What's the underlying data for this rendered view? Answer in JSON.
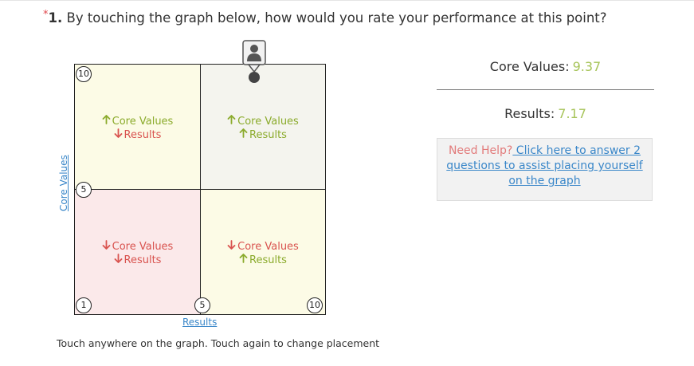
{
  "question": {
    "required_mark": "*",
    "number": "1.",
    "text": "By touching the graph below, how would you rate your performance at this point?"
  },
  "graph": {
    "quadrants": {
      "top_left": {
        "line1": "Core Values",
        "line1_dir": "up",
        "line2": "Results",
        "line2_dir": "down"
      },
      "top_right": {
        "line1": "Core Values",
        "line1_dir": "up",
        "line2": "Results",
        "line2_dir": "up"
      },
      "bottom_left": {
        "line1": "Core Values",
        "line1_dir": "down",
        "line2": "Results",
        "line2_dir": "down"
      },
      "bottom_right": {
        "line1": "Core Values",
        "line1_dir": "down",
        "line2": "Results",
        "line2_dir": "up"
      }
    },
    "y_ticks": {
      "top": "10",
      "mid": "5"
    },
    "x_ticks": {
      "origin": "1",
      "mid": "5",
      "end": "10"
    },
    "y_axis_label": "Core Values",
    "x_axis_label": "Results",
    "hint": "Touch anywhere on the graph. Touch again to change placement",
    "marker": {
      "icon": "user-icon",
      "core_values": 9.37,
      "results": 7.17
    }
  },
  "scores": {
    "core_values_label": "Core Values:",
    "core_values_value": "9.37",
    "results_label": "Results:",
    "results_value": "7.17"
  },
  "help": {
    "prefix": "Need Help?",
    "link_text": " Click here to answer 2 questions to assist placing yourself on the graph"
  },
  "colors": {
    "accent_up": "#8bab2c",
    "accent_down": "#d9534f",
    "link": "#3a87c9",
    "score_value": "#a7c45a"
  }
}
